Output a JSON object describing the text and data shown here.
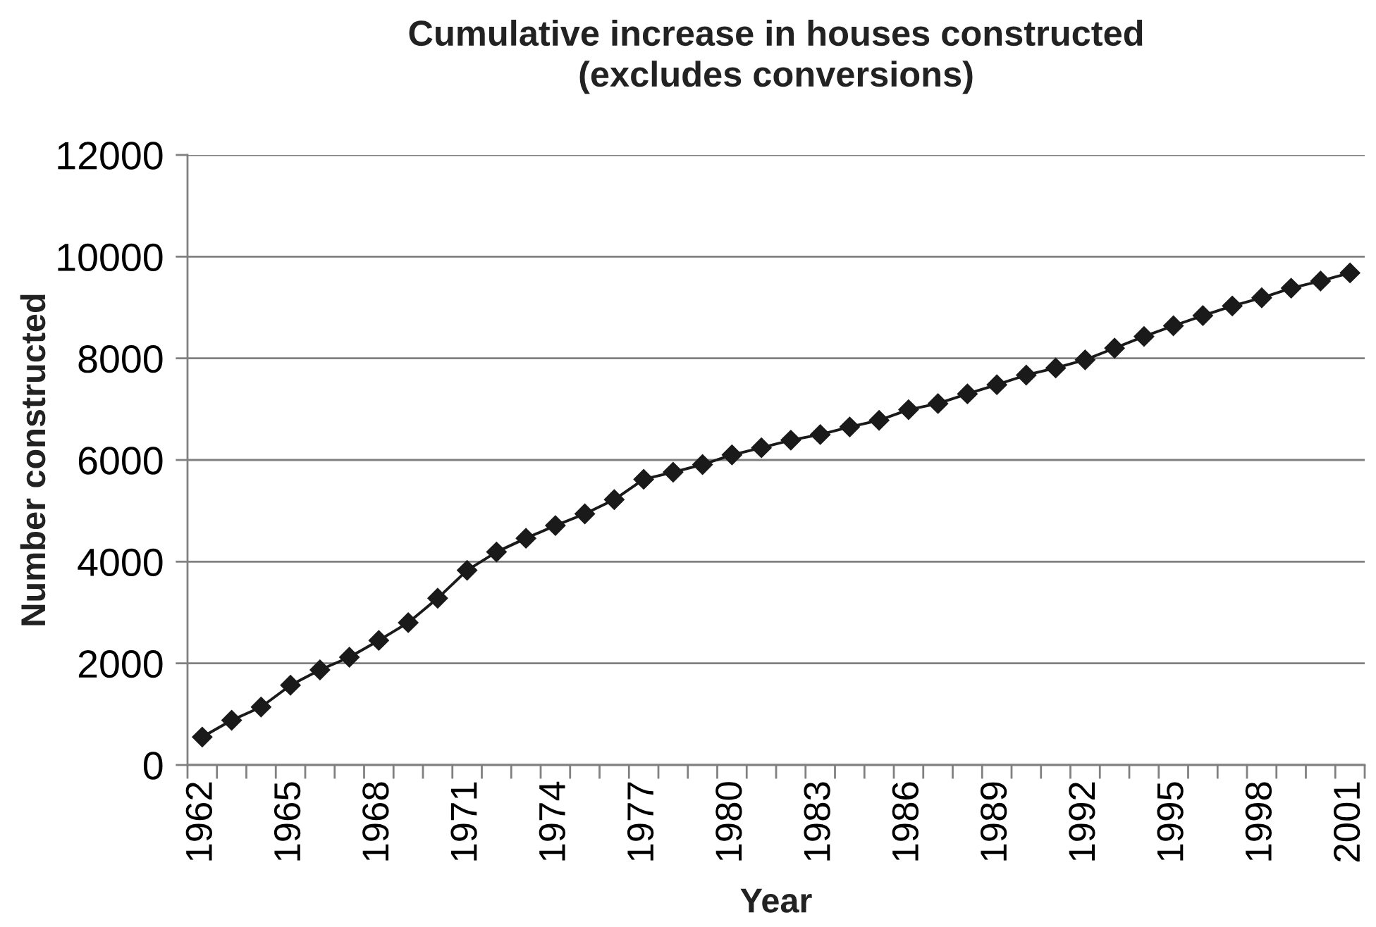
{
  "chart_data": {
    "type": "line",
    "title": "Cumulative increase in houses constructed\n(excludes conversions)",
    "xlabel": "Year",
    "ylabel": "Number constructed",
    "categories": [
      "1962",
      null,
      null,
      "1965",
      null,
      null,
      "1968",
      null,
      null,
      "1971",
      null,
      null,
      "1974",
      null,
      null,
      "1977",
      null,
      null,
      "1980",
      null,
      null,
      "1983",
      null,
      null,
      "1986",
      null,
      null,
      "1989",
      null,
      null,
      "1992",
      null,
      null,
      "1995",
      null,
      null,
      "1998",
      null,
      null,
      "2001"
    ],
    "series": [
      {
        "color": "#1a1a1a",
        "values": [
          550,
          880,
          1140,
          1570,
          1870,
          2120,
          2450,
          2800,
          3280,
          3830,
          4190,
          4460,
          4710,
          4940,
          5220,
          5620,
          5760,
          5910,
          6100,
          6240,
          6390,
          6500,
          6650,
          6780,
          6990,
          7110,
          7300,
          7480,
          7670,
          7810,
          7970,
          8200,
          8430,
          8640,
          8840,
          9030,
          9190,
          9380,
          9520,
          9680
        ]
      }
    ],
    "ylim": [
      0,
      12000
    ],
    "yticks": [
      0,
      2000,
      4000,
      6000,
      8000,
      10000,
      12000
    ],
    "grid": "y",
    "marker": "diamond",
    "line_style": "solid"
  }
}
